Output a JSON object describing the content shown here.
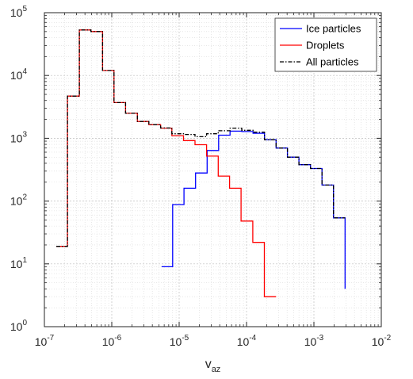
{
  "chart_data": {
    "type": "line",
    "xscale": "log",
    "yscale": "log",
    "xlim": [
      1e-07,
      0.01
    ],
    "ylim": [
      1,
      100000
    ],
    "x_ticks": [
      {
        "base": "10",
        "exp": "-7",
        "value": 1e-07
      },
      {
        "base": "10",
        "exp": "-6",
        "value": 1e-06
      },
      {
        "base": "10",
        "exp": "-5",
        "value": 1e-05
      },
      {
        "base": "10",
        "exp": "-4",
        "value": 0.0001
      },
      {
        "base": "10",
        "exp": "-3",
        "value": 0.001
      },
      {
        "base": "10",
        "exp": "-2",
        "value": 0.01
      }
    ],
    "y_ticks": [
      {
        "base": "10",
        "exp": "0",
        "value": 1
      },
      {
        "base": "10",
        "exp": "1",
        "value": 10
      },
      {
        "base": "10",
        "exp": "2",
        "value": 100
      },
      {
        "base": "10",
        "exp": "3",
        "value": 1000
      },
      {
        "base": "10",
        "exp": "4",
        "value": 10000
      },
      {
        "base": "10",
        "exp": "5",
        "value": 100000
      }
    ],
    "xlabel": {
      "main": "v",
      "sub": "az"
    },
    "ylabel": "",
    "grid": true,
    "minor_grid": true,
    "legend_position": "top-right",
    "series": [
      {
        "name": "Ice particles",
        "color": "#0000ff",
        "style": "solid",
        "edges": [
          5.5e-06,
          8e-06,
          1.18e-05,
          1.75e-05,
          2.6e-05,
          3.85e-05,
          5.7e-05,
          8.5e-05,
          0.000125,
          0.000185,
          0.000275,
          0.000405,
          0.0006,
          0.00089,
          0.00132,
          0.00195,
          0.0029
        ],
        "values": [
          9,
          88,
          160,
          280,
          640,
          1120,
          1300,
          1280,
          1200,
          950,
          700,
          500,
          380,
          330,
          180,
          54,
          4
        ]
      },
      {
        "name": "Droplets",
        "color": "#ff0000",
        "style": "solid",
        "edges": [
          1.5e-07,
          2.2e-07,
          3.3e-07,
          4.9e-07,
          7.3e-07,
          1.08e-06,
          1.6e-06,
          2.4e-06,
          3.55e-06,
          5.3e-06,
          7.8e-06,
          1.16e-05,
          1.72e-05,
          2.55e-05,
          3.8e-05,
          5.6e-05,
          8.3e-05,
          0.000124,
          0.000184,
          0.000275
        ],
        "values": [
          19,
          4700,
          53000,
          50000,
          12000,
          3700,
          2500,
          1850,
          1650,
          1450,
          1100,
          920,
          790,
          520,
          250,
          160,
          48,
          22,
          3
        ]
      },
      {
        "name": "All particles",
        "color": "#000000",
        "style": "dashdot",
        "edges": [
          1.5e-07,
          2.2e-07,
          3.3e-07,
          4.9e-07,
          7.3e-07,
          1.08e-06,
          1.6e-06,
          2.4e-06,
          3.55e-06,
          5.3e-06,
          7.8e-06,
          1.16e-05,
          1.72e-05,
          2.55e-05,
          3.8e-05,
          5.7e-05,
          8.5e-05,
          0.000125,
          0.000185,
          0.000275,
          0.000405,
          0.0006,
          0.00089,
          0.00132,
          0.00195,
          0.0029
        ],
        "values": [
          19,
          4700,
          53000,
          50000,
          12000,
          3700,
          2500,
          1850,
          1650,
          1460,
          1180,
          1150,
          1060,
          1180,
          1320,
          1450,
          1340,
          1250,
          950,
          700,
          500,
          380,
          330,
          180,
          54
        ]
      }
    ]
  }
}
